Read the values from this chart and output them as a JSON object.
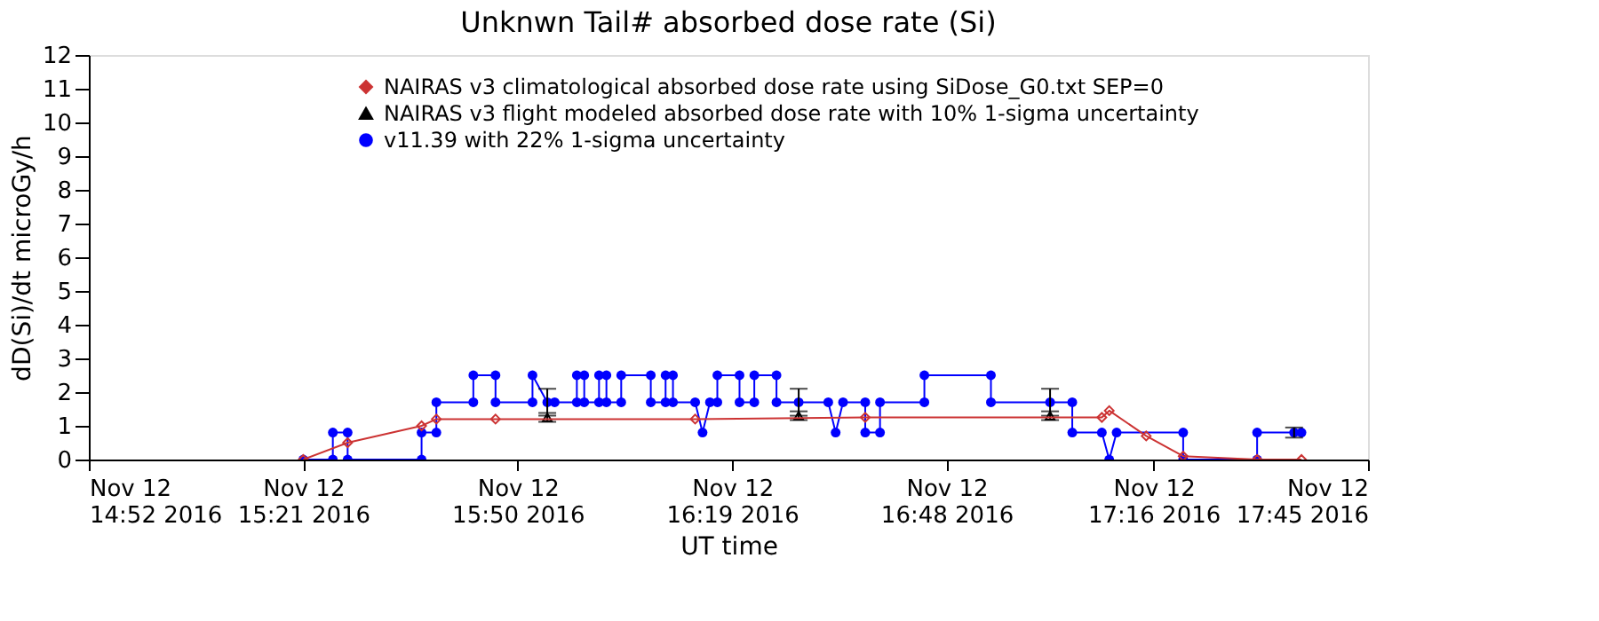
{
  "chart_data": {
    "type": "line",
    "title": "Unknwn Tail#  absorbed dose rate (Si)",
    "xlabel": "UT time",
    "ylabel": "dD(Si)/dt microGy/h",
    "xlim": [
      "2016-11-12T14:52",
      "2016-11-12T17:45"
    ],
    "ylim": [
      0,
      12
    ],
    "xticks": [
      {
        "value": "2016-11-12T14:52",
        "label": "Nov 12\n14:52 2016"
      },
      {
        "value": "2016-11-12T15:21",
        "label": "Nov 12\n15:21 2016"
      },
      {
        "value": "2016-11-12T15:50",
        "label": "Nov 12\n15:50 2016"
      },
      {
        "value": "2016-11-12T16:19",
        "label": "Nov 12\n16:19 2016"
      },
      {
        "value": "2016-11-12T16:48",
        "label": "Nov 12\n16:48 2016"
      },
      {
        "value": "2016-11-12T17:16",
        "label": "Nov 12\n17:16 2016"
      },
      {
        "value": "2016-11-12T17:45",
        "label": "Nov 12\n17:45 2016"
      }
    ],
    "yticks": [
      0,
      1,
      2,
      3,
      4,
      5,
      6,
      7,
      8,
      9,
      10,
      11,
      12
    ],
    "grid": false,
    "legend": "top",
    "series": [
      {
        "name": "NAIRAS v3 climatological absorbed dose rate using SiDose_G0.txt SEP=0",
        "marker": "diamond",
        "line_style": "solid",
        "color": "#cc3333",
        "x": [
          "2016-11-12T15:21",
          "2016-11-12T15:27",
          "2016-11-12T15:37",
          "2016-11-12T15:39",
          "2016-11-12T15:47",
          "2016-11-12T16:14",
          "2016-11-12T16:37",
          "2016-11-12T17:09",
          "2016-11-12T17:10",
          "2016-11-12T17:15",
          "2016-11-12T17:20",
          "2016-11-12T17:30",
          "2016-11-12T17:36"
        ],
        "values": [
          0,
          0.5,
          1.0,
          1.2,
          1.2,
          1.2,
          1.25,
          1.25,
          1.45,
          0.7,
          0.1,
          0,
          0
        ]
      },
      {
        "name": "NAIRAS v3 flight modeled absorbed dose rate with 10% 1-sigma uncertainty",
        "type": "scatter",
        "marker": "triangle",
        "color": "#000000",
        "x": [
          "2016-11-12T15:54",
          "2016-11-12T16:28",
          "2016-11-12T17:02"
        ],
        "values": [
          1.25,
          1.3,
          1.3
        ],
        "errors": [
          0.13,
          0.13,
          0.13
        ]
      },
      {
        "name": "v11.39 with 22% 1-sigma uncertainty",
        "marker": "circle",
        "line_style": "solid",
        "color": "#0000ff",
        "x": [
          "2016-11-12T15:21",
          "2016-11-12T15:25",
          "2016-11-12T15:25",
          "2016-11-12T15:27",
          "2016-11-12T15:27",
          "2016-11-12T15:37",
          "2016-11-12T15:37",
          "2016-11-12T15:39",
          "2016-11-12T15:39",
          "2016-11-12T15:44",
          "2016-11-12T15:44",
          "2016-11-12T15:47",
          "2016-11-12T15:47",
          "2016-11-12T15:52",
          "2016-11-12T15:52",
          "2016-11-12T15:54",
          "2016-11-12T15:55",
          "2016-11-12T15:58",
          "2016-11-12T15:58",
          "2016-11-12T15:59",
          "2016-11-12T15:59",
          "2016-11-12T16:01",
          "2016-11-12T16:01",
          "2016-11-12T16:02",
          "2016-11-12T16:02",
          "2016-11-12T16:04",
          "2016-11-12T16:04",
          "2016-11-12T16:08",
          "2016-11-12T16:08",
          "2016-11-12T16:10",
          "2016-11-12T16:10",
          "2016-11-12T16:11",
          "2016-11-12T16:11",
          "2016-11-12T16:14",
          "2016-11-12T16:15",
          "2016-11-12T16:16",
          "2016-11-12T16:17",
          "2016-11-12T16:17",
          "2016-11-12T16:20",
          "2016-11-12T16:20",
          "2016-11-12T16:22",
          "2016-11-12T16:22",
          "2016-11-12T16:25",
          "2016-11-12T16:25",
          "2016-11-12T16:28",
          "2016-11-12T16:32",
          "2016-11-12T16:33",
          "2016-11-12T16:34",
          "2016-11-12T16:37",
          "2016-11-12T16:37",
          "2016-11-12T16:39",
          "2016-11-12T16:39",
          "2016-11-12T16:45",
          "2016-11-12T16:45",
          "2016-11-12T16:54",
          "2016-11-12T16:54",
          "2016-11-12T17:02",
          "2016-11-12T17:05",
          "2016-11-12T17:05",
          "2016-11-12T17:09",
          "2016-11-12T17:10",
          "2016-11-12T17:11",
          "2016-11-12T17:20",
          "2016-11-12T17:20",
          "2016-11-12T17:30",
          "2016-11-12T17:30",
          "2016-11-12T17:35",
          "2016-11-12T17:36"
        ],
        "values": [
          0,
          0,
          0.8,
          0.8,
          0,
          0,
          0.8,
          0.8,
          1.7,
          1.7,
          2.5,
          2.5,
          1.7,
          1.7,
          2.5,
          1.7,
          1.7,
          1.7,
          2.5,
          2.5,
          1.7,
          1.7,
          2.5,
          2.5,
          1.7,
          1.7,
          2.5,
          2.5,
          1.7,
          1.7,
          2.5,
          2.5,
          1.7,
          1.7,
          0.8,
          1.7,
          1.7,
          2.5,
          2.5,
          1.7,
          1.7,
          2.5,
          2.5,
          1.7,
          1.7,
          1.7,
          0.8,
          1.7,
          1.7,
          0.8,
          0.8,
          1.7,
          1.7,
          2.5,
          2.5,
          1.7,
          1.7,
          1.7,
          0.8,
          0.8,
          0,
          0.8,
          0.8,
          0,
          0,
          0.8,
          0.8,
          0.8
        ],
        "errors": [
          null,
          null,
          null,
          null,
          null,
          null,
          null,
          null,
          null,
          null,
          null,
          null,
          null,
          null,
          null,
          0.4,
          null,
          null,
          null,
          null,
          null,
          null,
          null,
          null,
          null,
          null,
          null,
          null,
          null,
          null,
          null,
          null,
          null,
          null,
          null,
          null,
          null,
          null,
          null,
          null,
          null,
          null,
          null,
          null,
          0.4,
          null,
          null,
          null,
          null,
          null,
          null,
          null,
          null,
          null,
          null,
          null,
          0.4,
          null,
          null,
          null,
          null,
          null,
          null,
          null,
          null,
          null,
          0.15,
          null
        ]
      }
    ]
  }
}
